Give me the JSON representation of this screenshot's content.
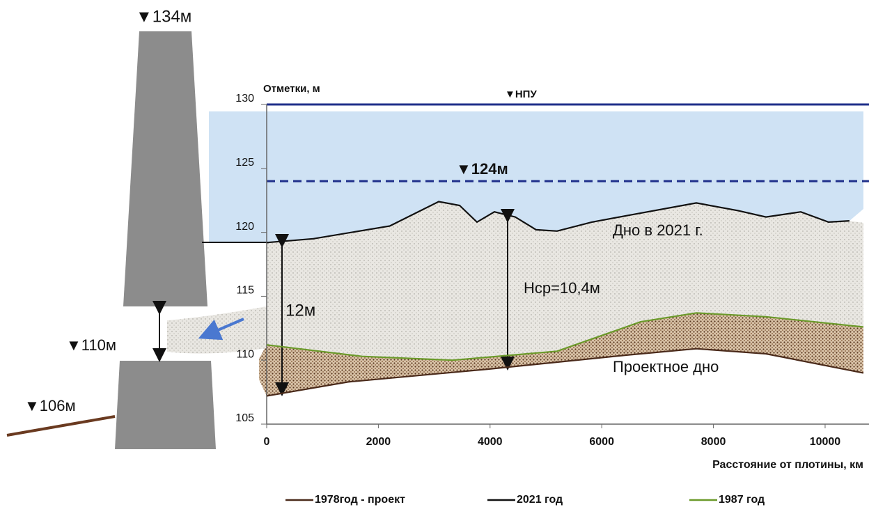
{
  "chart_data": {
    "type": "line",
    "y_axis_label": "Отметки, м",
    "x_axis_label": "Расстояние от плотины, км",
    "xlim": [
      0,
      10786
    ],
    "ylim": [
      105,
      130
    ],
    "xticks": [
      0,
      2000,
      4000,
      6000,
      8000,
      10000
    ],
    "yticks": [
      105,
      110,
      115,
      120,
      125,
      130
    ],
    "series": [
      {
        "name": "1978год - проект",
        "color": "#4a2a1a",
        "x": [
          0,
          1459,
          3953,
          6446,
          7693,
          8940,
          10686
        ],
        "values": [
          107.2,
          108.3,
          109.3,
          110.4,
          110.9,
          110.5,
          109.0
        ]
      },
      {
        "name": "2021 год",
        "color": "#111111",
        "x": [
          0,
          835,
          2207,
          3080,
          3454,
          3766,
          4077,
          4451,
          4825,
          5200,
          5823,
          6446,
          7693,
          8441,
          8940,
          9564,
          10062,
          10436
        ],
        "values": [
          119.2,
          119.5,
          120.5,
          122.4,
          122.1,
          120.8,
          121.6,
          121.2,
          120.2,
          120.1,
          120.8,
          121.3,
          122.3,
          121.7,
          121.2,
          121.6,
          120.8,
          120.9
        ]
      },
      {
        "name": "1987  год",
        "color": "#6b9a2a",
        "x": [
          0,
          1708,
          3329,
          5200,
          6696,
          7693,
          8940,
          10686
        ],
        "values": [
          111.2,
          110.3,
          110.0,
          110.7,
          113.0,
          113.7,
          113.4,
          112.6
        ]
      }
    ],
    "reference_lines": [
      {
        "label": "▼НПУ",
        "value": 130,
        "color": "#1f2f8a",
        "dashed": false
      },
      {
        "label": "▼124м",
        "value": 124,
        "color": "#1f2f8a",
        "dashed": true
      }
    ],
    "annotations": {
      "bottom_2021": "Дно в 2021 г.",
      "mean_depth": "Hcp=10,4м",
      "depth_at_dam": "12м",
      "design_bottom": "Проектное дно",
      "dam_crest": "▼134м",
      "outlet": "▼110м",
      "downstream": "▼106м"
    }
  }
}
